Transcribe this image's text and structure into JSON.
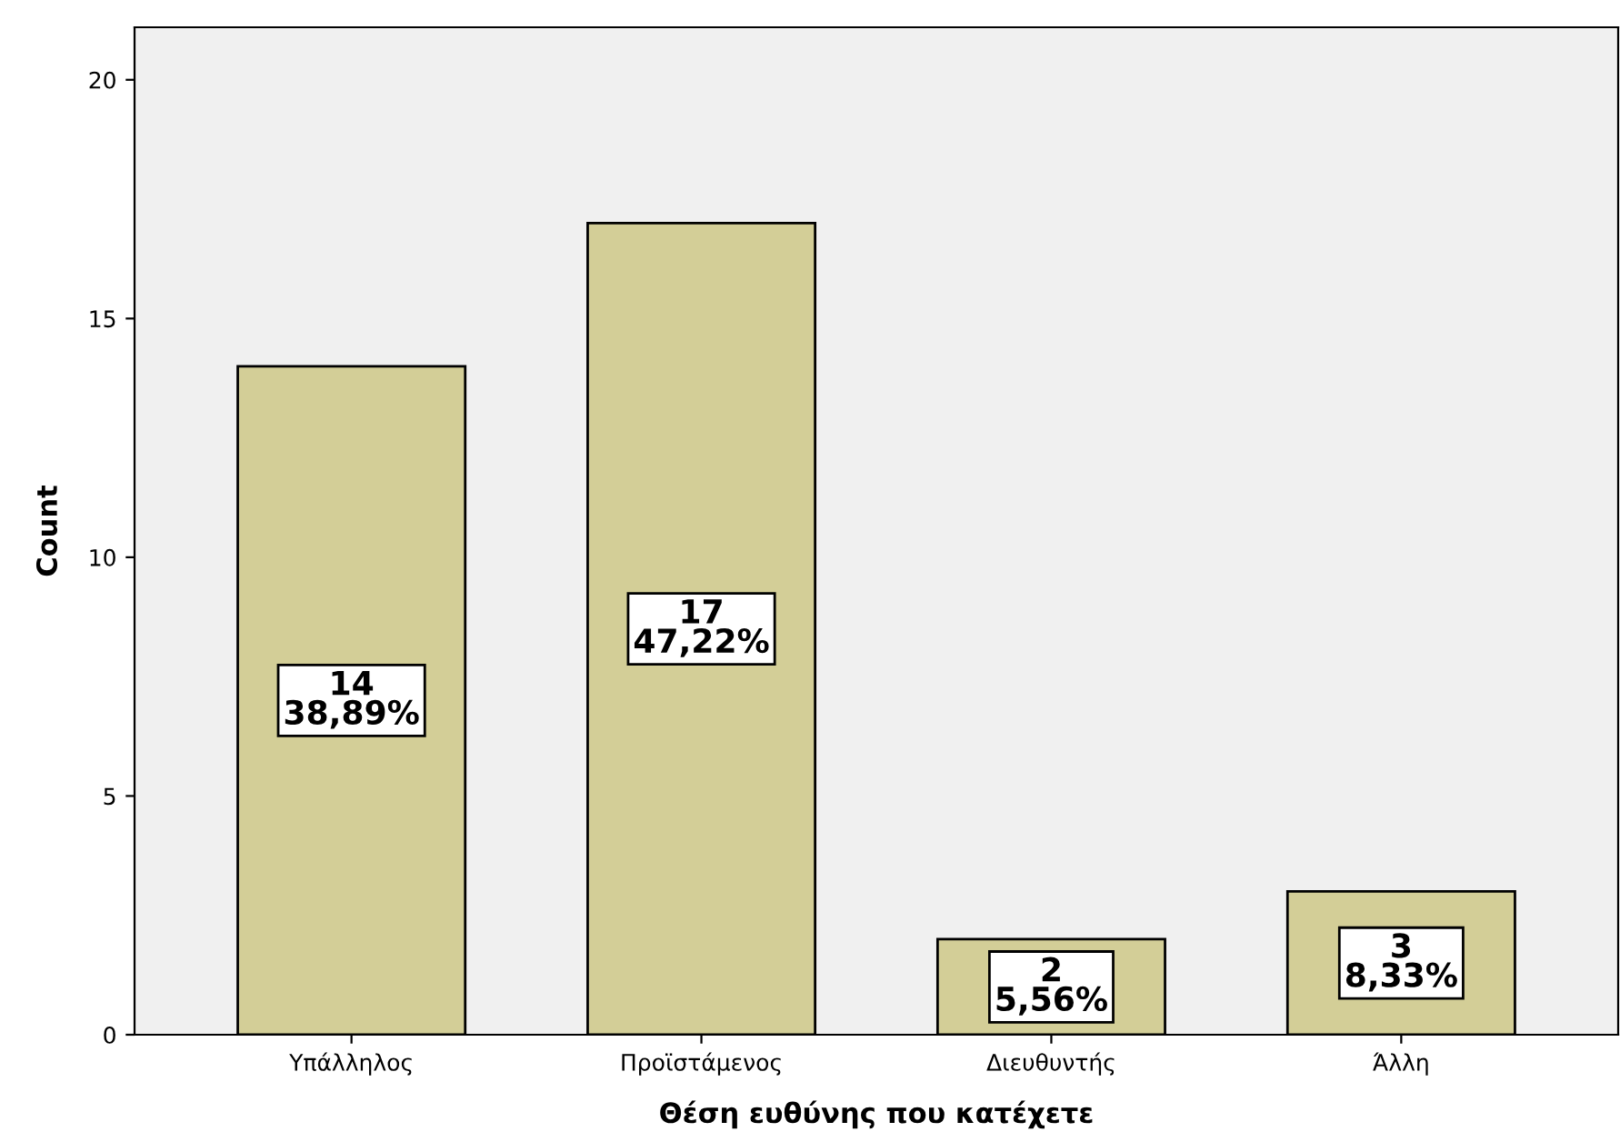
{
  "chart_data": {
    "type": "bar",
    "xlabel": "Θέση ευθύνης που κατέχετε",
    "ylabel": "Count",
    "categories": [
      "Υπάλληλος",
      "Προϊστάμενος",
      "Διευθυντής",
      "Άλλη"
    ],
    "values": [
      14,
      17,
      2,
      3
    ],
    "value_labels": [
      "14\n38,89%",
      "17\n47,22%",
      "2\n5,56%",
      "3\n8,33%"
    ],
    "color": "#d3ce97",
    "ylim": [
      0,
      21.1
    ],
    "yticks": [
      0,
      5,
      10,
      15,
      20
    ],
    "grid": false,
    "legend": false
  }
}
